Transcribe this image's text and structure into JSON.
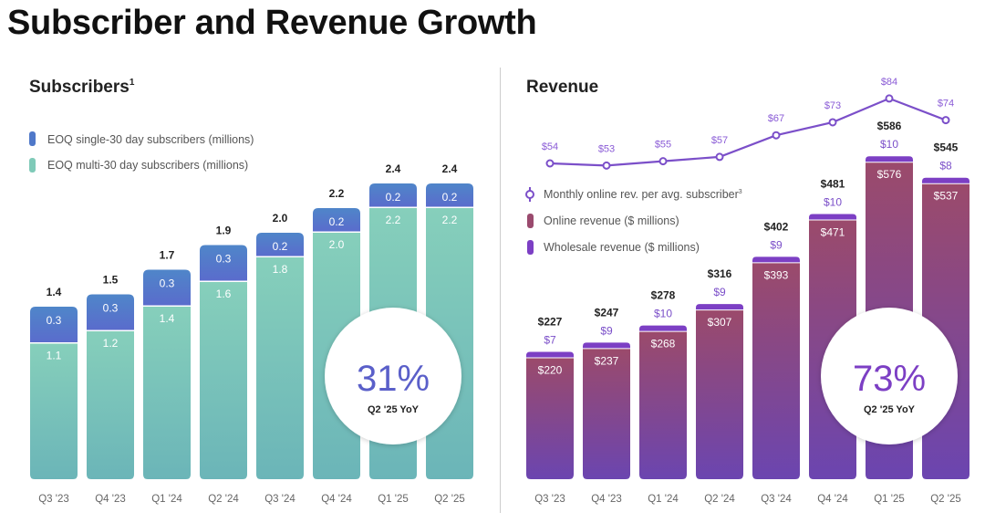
{
  "page_title": "Subscriber and Revenue Growth",
  "chart_data": [
    {
      "type": "bar",
      "stacked": true,
      "title": "Subscribers",
      "title_footnote": "1",
      "categories": [
        "Q3 '23",
        "Q4 '23",
        "Q1 '24",
        "Q2 '24",
        "Q3 '24",
        "Q4 '24",
        "Q1 '25",
        "Q2 '25"
      ],
      "series": [
        {
          "name": "EOQ multi-30 day subscribers  (millions)",
          "values": [
            1.1,
            1.2,
            1.4,
            1.6,
            1.8,
            2.0,
            2.2,
            2.2
          ],
          "color": "#7fcab8"
        },
        {
          "name": "EOQ single-30 day subscribers (millions)",
          "values": [
            0.3,
            0.3,
            0.3,
            0.3,
            0.2,
            0.2,
            0.2,
            0.2
          ],
          "color": "#4f78c9"
        }
      ],
      "totals": [
        1.4,
        1.5,
        1.7,
        1.9,
        2.0,
        2.2,
        2.4,
        2.4
      ],
      "legend_position": "top-left",
      "callout": {
        "value": "31%",
        "label": "Q2 '25 YoY"
      }
    },
    {
      "type": "bar",
      "stacked": true,
      "title": "Revenue",
      "categories": [
        "Q3 '23",
        "Q4 '23",
        "Q1 '24",
        "Q2 '24",
        "Q3 '24",
        "Q4 '24",
        "Q1 '25",
        "Q2 '25"
      ],
      "series": [
        {
          "name": "Online revenue ($ millions)",
          "values": [
            220,
            237,
            268,
            307,
            393,
            471,
            576,
            537
          ],
          "color": "#9a4a6e"
        },
        {
          "name": "Wholesale revenue ($ millions)",
          "values": [
            7,
            9,
            10,
            9,
            9,
            10,
            10,
            8
          ],
          "color": "#7c3fc4"
        }
      ],
      "totals": [
        227,
        247,
        278,
        316,
        402,
        481,
        586,
        545
      ],
      "line_series": {
        "name": "Monthly online rev. per avg. subscriber",
        "footnote": "3",
        "values": [
          54,
          53,
          55,
          57,
          67,
          73,
          84,
          74
        ],
        "color": "#7b4fc9"
      },
      "legend_position": "middle-left",
      "callout": {
        "value": "73%",
        "label": "Q2 '25 YoY"
      }
    }
  ]
}
